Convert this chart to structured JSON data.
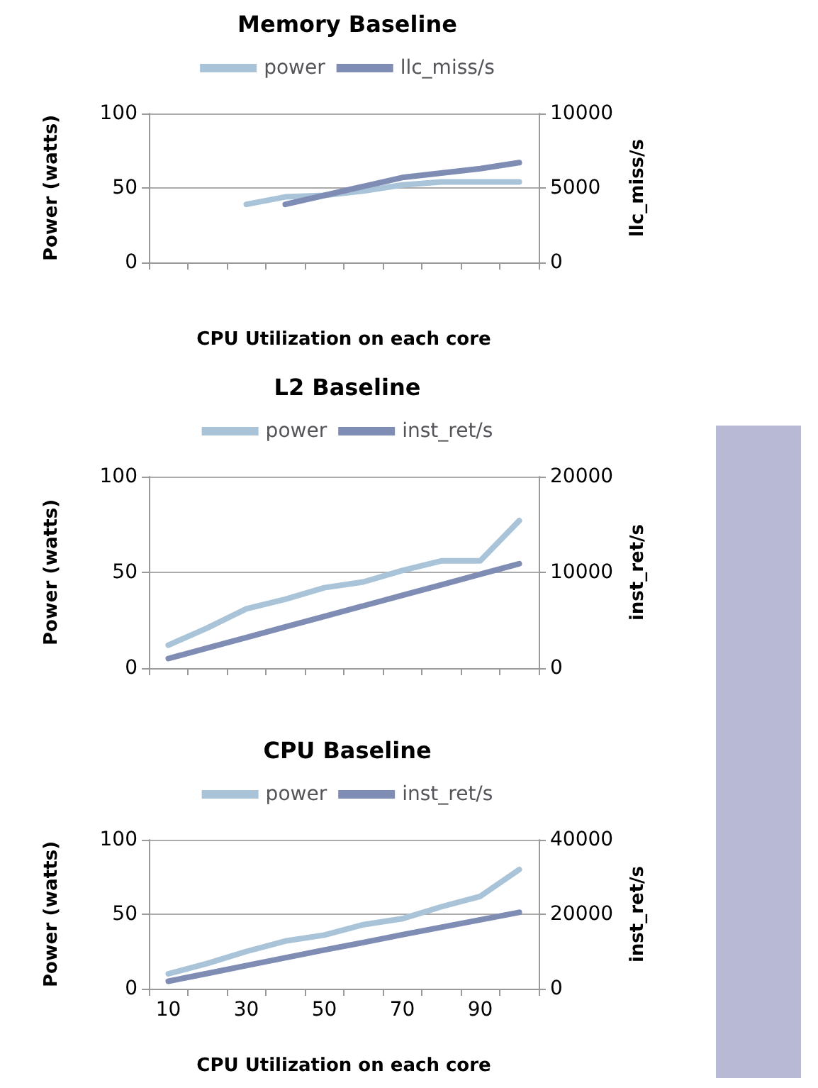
{
  "chart_data": [
    {
      "type": "line",
      "title": "Memory Baseline",
      "xlabel": "CPU Utilization on each core",
      "ylabel": "Power (watts)",
      "y2label": "llc_miss/s",
      "categories": [
        null,
        null,
        null,
        null,
        null,
        null,
        null,
        null,
        null,
        null
      ],
      "series": [
        {
          "name": "power",
          "color": "#a9c4d8",
          "values": [
            null,
            null,
            39,
            44,
            45,
            48,
            52,
            54,
            54,
            54
          ]
        },
        {
          "name": "llc_miss/s",
          "color": "#7f8db5",
          "axis": "y2",
          "values": [
            null,
            null,
            null,
            3900,
            4500,
            5100,
            5700,
            6000,
            6300,
            6700
          ]
        }
      ],
      "ylim": [
        0,
        100
      ],
      "yticks": [
        0,
        50,
        100
      ],
      "y2lim": [
        0,
        10000
      ],
      "y2ticks": [
        0,
        5000,
        10000
      ],
      "grid": "y",
      "legend": "top",
      "marker": "none",
      "tick_labels": "y"
    },
    {
      "type": "line",
      "title": "L2 Baseline",
      "ylabel": "Power (watts)",
      "y2label": "inst_ret/s",
      "categories": [
        null,
        null,
        null,
        null,
        null,
        null,
        null,
        null,
        null,
        null
      ],
      "series": [
        {
          "name": "power",
          "color": "#a9c4d8",
          "values": [
            12,
            21,
            31,
            36,
            42,
            45,
            51,
            56,
            56,
            77
          ]
        },
        {
          "name": "inst_ret/s",
          "color": "#7f8db5",
          "axis": "y2",
          "values": [
            1000,
            2100,
            3200,
            4300,
            5400,
            6500,
            7600,
            8700,
            9800,
            10900
          ]
        }
      ],
      "ylim": [
        0,
        100
      ],
      "yticks": [
        0,
        50,
        100
      ],
      "y2lim": [
        0,
        20000
      ],
      "y2ticks": [
        0,
        10000,
        20000
      ],
      "grid": "y",
      "legend": "top",
      "marker": "none",
      "tick_labels": "y"
    },
    {
      "type": "line",
      "title": "CPU Baseline",
      "xlabel": "CPU Utilization on each core",
      "ylabel": "Power (watts)",
      "y2label": "inst_ret/s",
      "categories": [
        "10",
        null,
        "30",
        null,
        "50",
        null,
        "70",
        null,
        "90",
        null
      ],
      "series": [
        {
          "name": "power",
          "color": "#a9c4d8",
          "values": [
            10,
            17,
            25,
            32,
            36,
            43,
            47,
            55,
            62,
            80
          ]
        },
        {
          "name": "inst_ret/s",
          "color": "#7f8db5",
          "axis": "y2",
          "values": [
            2000,
            4100,
            6200,
            8300,
            10400,
            12400,
            14500,
            16500,
            18500,
            20500
          ]
        }
      ],
      "ylim": [
        0,
        100
      ],
      "yticks": [
        0,
        50,
        100
      ],
      "y2lim": [
        0,
        40000
      ],
      "y2ticks": [
        0,
        20000,
        40000
      ],
      "grid": "y",
      "legend": "top",
      "marker": "none"
    }
  ]
}
